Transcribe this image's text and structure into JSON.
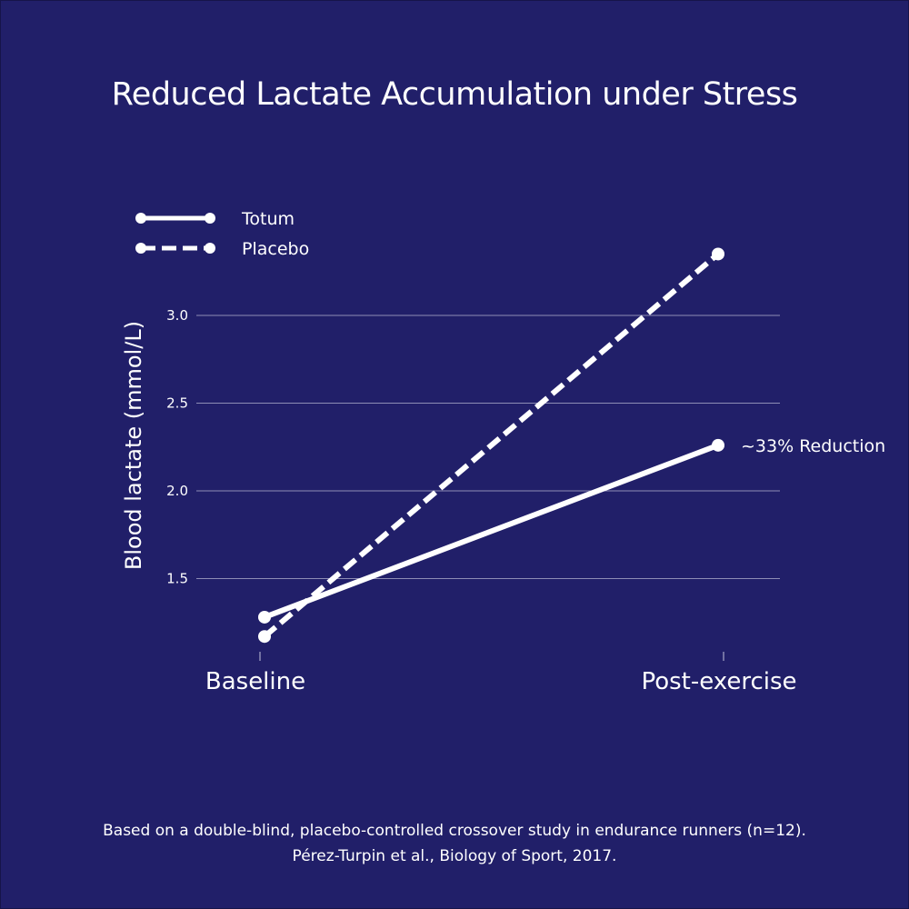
{
  "chart_data": {
    "type": "line",
    "title": "Reduced Lactate Accumulation under Stress",
    "xlabel": "",
    "ylabel": "Blood lactate (mmol/L)",
    "categories": [
      "Baseline",
      "Post-exercise"
    ],
    "yticks": [
      "1.5",
      "2.0",
      "2.5",
      "3.0"
    ],
    "ylim": [
      1.1,
      3.4
    ],
    "grid": true,
    "legend_position": "top-left",
    "series": [
      {
        "name": "Totum",
        "values": [
          1.28,
          2.26
        ],
        "style": "solid",
        "color": "#ffffff"
      },
      {
        "name": "Placebo",
        "values": [
          1.17,
          3.35
        ],
        "style": "dashed",
        "color": "#ffffff"
      }
    ],
    "annotations": [
      {
        "text": "~33% Reduction",
        "category": "Post-exercise",
        "value": 2.26
      }
    ]
  },
  "footer": {
    "line1": "Based on a double-blind, placebo-controlled crossover study in endurance runners (n=12).",
    "line2": "Pérez-Turpin et al., Biology of Sport, 2017."
  },
  "colors": {
    "background": "#211f69",
    "grid": "#8e8db5",
    "foreground": "#ffffff"
  }
}
